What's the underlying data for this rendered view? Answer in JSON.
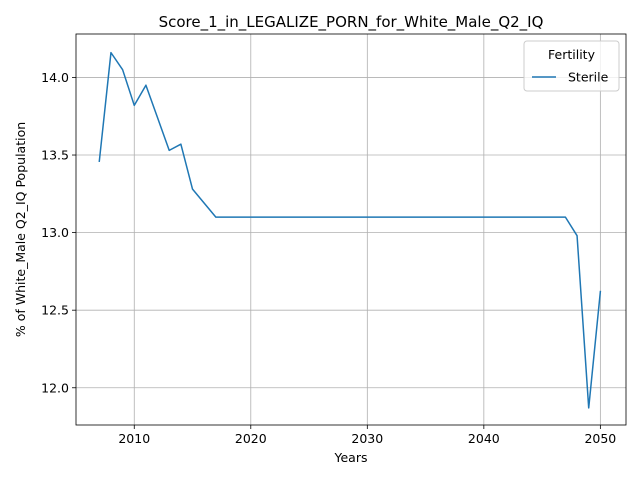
{
  "chart_data": {
    "type": "line",
    "title": "Score_1_in_LEGALIZE_PORN_for_White_Male_Q2_IQ",
    "xlabel": "Years",
    "ylabel": "% of White_Male Q2_IQ Population",
    "xlim": [
      2005,
      2052.2
    ],
    "ylim": [
      11.76,
      14.28
    ],
    "grid": true,
    "legend": {
      "title": "Fertility",
      "placement": "top-right"
    },
    "x_ticks": [
      2010,
      2020,
      2030,
      2040,
      2050
    ],
    "x_tick_labels": [
      "2010",
      "2020",
      "2030",
      "2040",
      "2050"
    ],
    "y_ticks": [
      12.0,
      12.5,
      13.0,
      13.5,
      14.0
    ],
    "y_tick_labels": [
      "12.0",
      "12.5",
      "13.0",
      "13.5",
      "14.0"
    ],
    "series": [
      {
        "name": "Sterile",
        "color": "#1f77b4",
        "x": [
          2007,
          2008,
          2009,
          2010,
          2011,
          2012,
          2013,
          2014,
          2015,
          2016,
          2017,
          2018,
          2019,
          2020,
          2021,
          2022,
          2023,
          2024,
          2025,
          2026,
          2027,
          2028,
          2029,
          2030,
          2031,
          2032,
          2033,
          2034,
          2035,
          2036,
          2037,
          2038,
          2039,
          2040,
          2041,
          2042,
          2043,
          2044,
          2045,
          2046,
          2047,
          2048,
          2049,
          2050
        ],
        "values": [
          13.46,
          14.16,
          14.05,
          13.82,
          13.95,
          13.74,
          13.53,
          13.57,
          13.28,
          13.19,
          13.1,
          13.1,
          13.1,
          13.1,
          13.1,
          13.1,
          13.1,
          13.1,
          13.1,
          13.1,
          13.1,
          13.1,
          13.1,
          13.1,
          13.1,
          13.1,
          13.1,
          13.1,
          13.1,
          13.1,
          13.1,
          13.1,
          13.1,
          13.1,
          13.1,
          13.1,
          13.1,
          13.1,
          13.1,
          13.1,
          13.1,
          12.98,
          11.87,
          12.62
        ]
      }
    ]
  }
}
